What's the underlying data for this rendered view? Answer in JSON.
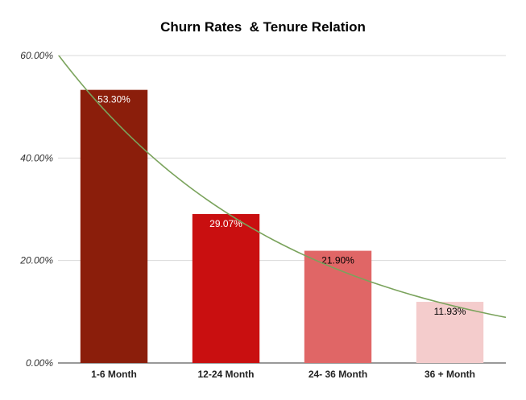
{
  "chart_data": {
    "type": "bar",
    "title": "Churn Rates  & Tenure Relation",
    "categories": [
      "1-6 Month",
      "12-24 Month",
      "24- 36 Month",
      "36 + Month"
    ],
    "values": [
      53.3,
      29.07,
      21.9,
      11.93
    ],
    "data_labels": [
      "53.30%",
      "29.07%",
      "21.90%",
      "11.93%"
    ],
    "bar_colors": [
      "#8b1e0b",
      "#c90f10",
      "#e06666",
      "#f4cccc"
    ],
    "label_colors": [
      "#ffffff",
      "#ffffff",
      "#000000",
      "#000000"
    ],
    "ylim": [
      0,
      60
    ],
    "yticks": [
      0,
      20,
      40,
      60
    ],
    "ytick_labels": [
      "0.00%",
      "20.00%",
      "40.00%",
      "60.00%"
    ],
    "xlabel": "",
    "ylabel": "",
    "grid": true,
    "trendline": {
      "type": "exponential",
      "color": "#7aa35c",
      "start_value": 60.2,
      "end_value": 8.9
    }
  }
}
